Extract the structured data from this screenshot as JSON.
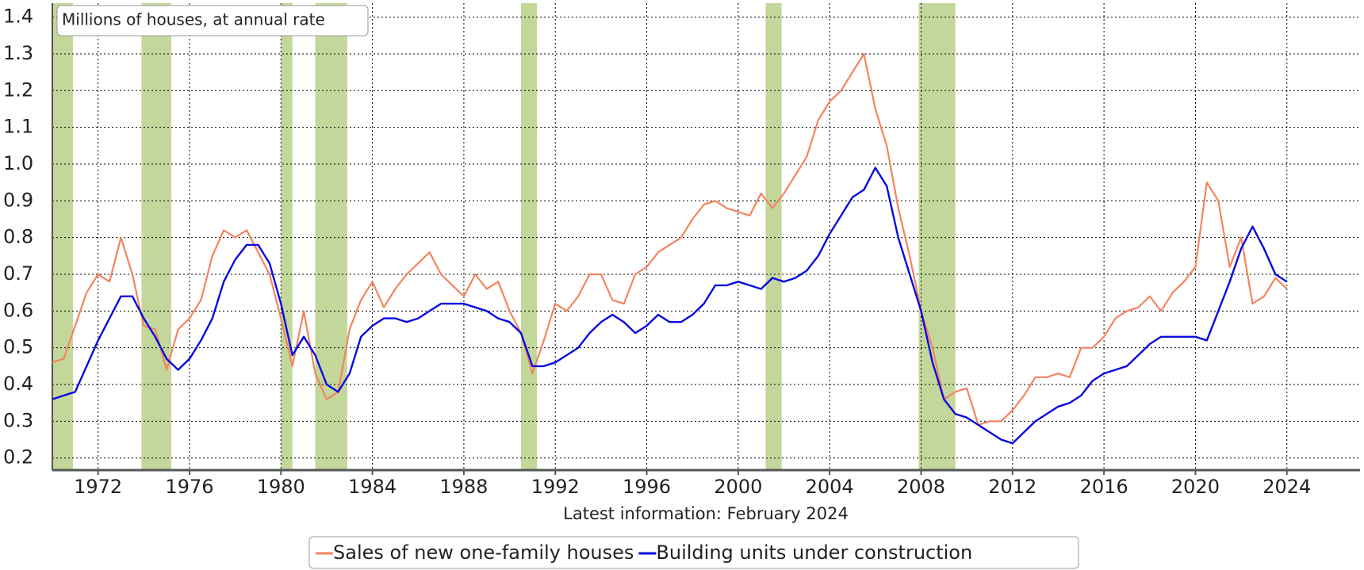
{
  "chart_data": {
    "type": "line",
    "ylabel": "Millions of houses, at annual rate",
    "annotation": "Latest information: February 2024",
    "xlim": [
      1970,
      2027.2
    ],
    "ylim": [
      0.167,
      1.438
    ],
    "xticks": [
      1972,
      1976,
      1980,
      1984,
      1988,
      1992,
      1996,
      2000,
      2004,
      2008,
      2012,
      2016,
      2020,
      2024
    ],
    "yticks": [
      0.2,
      0.3,
      0.4,
      0.5,
      0.6,
      0.7,
      0.8,
      0.9,
      {
        "value": 1.0,
        "label": "1.0"
      },
      1.1,
      1.2,
      1.3,
      1.4
    ],
    "grid": true,
    "legend": "bottom",
    "recession_color": "#c3d79b",
    "recessions": [
      [
        1970.0,
        1970.9
      ],
      [
        1973.9,
        1975.2
      ],
      [
        1980.0,
        1980.5
      ],
      [
        1981.5,
        1982.9
      ],
      [
        1990.5,
        1991.2
      ],
      [
        2001.2,
        2001.9
      ],
      [
        2007.9,
        2009.5
      ]
    ],
    "x": [
      1970,
      1970.5,
      1971,
      1971.5,
      1972,
      1972.5,
      1973,
      1973.5,
      1974,
      1974.5,
      1975,
      1975.5,
      1976,
      1976.5,
      1977,
      1977.5,
      1978,
      1978.5,
      1979,
      1979.5,
      1980,
      1980.5,
      1981,
      1981.5,
      1982,
      1982.5,
      1983,
      1983.5,
      1984,
      1984.5,
      1985,
      1985.5,
      1986,
      1986.5,
      1987,
      1987.5,
      1988,
      1988.5,
      1989,
      1989.5,
      1990,
      1990.5,
      1991,
      1991.5,
      1992,
      1992.5,
      1993,
      1993.5,
      1994,
      1994.5,
      1995,
      1995.5,
      1996,
      1996.5,
      1997,
      1997.5,
      1998,
      1998.5,
      1999,
      1999.5,
      2000,
      2000.5,
      2001,
      2001.5,
      2002,
      2002.5,
      2003,
      2003.5,
      2004,
      2004.5,
      2005,
      2005.5,
      2006,
      2006.5,
      2007,
      2007.5,
      2008,
      2008.5,
      2009,
      2009.5,
      2010,
      2010.5,
      2011,
      2011.5,
      2012,
      2012.5,
      2013,
      2013.5,
      2014,
      2014.5,
      2015,
      2015.5,
      2016,
      2016.5,
      2017,
      2017.5,
      2018,
      2018.5,
      2019,
      2019.5,
      2020,
      2020.5,
      2021,
      2021.5,
      2022,
      2022.5,
      2023,
      2023.5,
      2024
    ],
    "series": [
      {
        "name": "Sales of new one-family houses",
        "color": "#f4845f",
        "values": [
          0.46,
          0.47,
          0.56,
          0.65,
          0.7,
          0.68,
          0.8,
          0.7,
          0.56,
          0.55,
          0.44,
          0.55,
          0.58,
          0.63,
          0.75,
          0.82,
          0.8,
          0.82,
          0.76,
          0.7,
          0.58,
          0.45,
          0.6,
          0.43,
          0.36,
          0.38,
          0.55,
          0.63,
          0.68,
          0.61,
          0.66,
          0.7,
          0.73,
          0.76,
          0.7,
          0.67,
          0.64,
          0.7,
          0.66,
          0.68,
          0.6,
          0.54,
          0.43,
          0.52,
          0.62,
          0.6,
          0.64,
          0.7,
          0.7,
          0.63,
          0.62,
          0.7,
          0.72,
          0.76,
          0.78,
          0.8,
          0.85,
          0.89,
          0.9,
          0.88,
          0.87,
          0.86,
          0.92,
          0.88,
          0.92,
          0.97,
          1.02,
          1.12,
          1.17,
          1.2,
          1.25,
          1.3,
          1.15,
          1.05,
          0.88,
          0.75,
          0.6,
          0.5,
          0.36,
          0.38,
          0.39,
          0.29,
          0.3,
          0.3,
          0.33,
          0.37,
          0.42,
          0.42,
          0.43,
          0.42,
          0.5,
          0.5,
          0.53,
          0.58,
          0.6,
          0.61,
          0.64,
          0.6,
          0.65,
          0.68,
          0.72,
          0.95,
          0.9,
          0.72,
          0.8,
          0.62,
          0.64,
          0.69,
          0.66
        ]
      },
      {
        "name": "Building units under construction",
        "color": "#0a0ae0",
        "values": [
          0.36,
          0.37,
          0.38,
          0.45,
          0.52,
          0.58,
          0.64,
          0.64,
          0.58,
          0.53,
          0.47,
          0.44,
          0.47,
          0.52,
          0.58,
          0.68,
          0.74,
          0.78,
          0.78,
          0.73,
          0.62,
          0.48,
          0.53,
          0.48,
          0.4,
          0.38,
          0.43,
          0.53,
          0.56,
          0.58,
          0.58,
          0.57,
          0.58,
          0.6,
          0.62,
          0.62,
          0.62,
          0.61,
          0.6,
          0.58,
          0.57,
          0.54,
          0.45,
          0.45,
          0.46,
          0.48,
          0.5,
          0.54,
          0.57,
          0.59,
          0.57,
          0.54,
          0.56,
          0.59,
          0.57,
          0.57,
          0.59,
          0.62,
          0.67,
          0.67,
          0.68,
          0.67,
          0.66,
          0.69,
          0.68,
          0.69,
          0.71,
          0.75,
          0.81,
          0.86,
          0.91,
          0.93,
          0.99,
          0.94,
          0.8,
          0.7,
          0.6,
          0.46,
          0.36,
          0.32,
          0.31,
          0.29,
          0.27,
          0.25,
          0.24,
          0.27,
          0.3,
          0.32,
          0.34,
          0.35,
          0.37,
          0.41,
          0.43,
          0.44,
          0.45,
          0.48,
          0.51,
          0.53,
          0.53,
          0.53,
          0.53,
          0.52,
          0.6,
          0.68,
          0.77,
          0.83,
          0.77,
          0.7,
          0.68
        ]
      }
    ]
  }
}
